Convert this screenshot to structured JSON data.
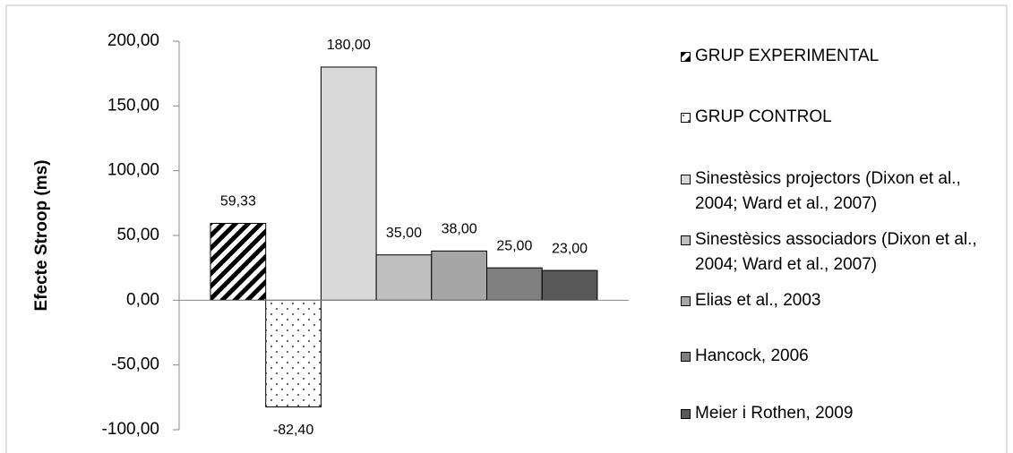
{
  "chart_data": {
    "type": "bar",
    "y_label": "Efecte Stroop (ms)",
    "categories": [
      null
    ],
    "ylim": [
      -100,
      200
    ],
    "yticks": [
      {
        "value": -100,
        "label": "-100,00"
      },
      {
        "value": -50,
        "label": "-50,00"
      },
      {
        "value": 0,
        "label": "0,00"
      },
      {
        "value": 50,
        "label": "50,00"
      },
      {
        "value": 100,
        "label": "100,00"
      },
      {
        "value": 150,
        "label": "150,00"
      },
      {
        "value": 200,
        "label": "200,00"
      }
    ],
    "grid": false,
    "legend": "right",
    "series": [
      {
        "name": "GRUP EXPERIMENTAL",
        "color": "#000000",
        "pattern": "stripes",
        "values": [
          59.33
        ],
        "value_labels": [
          "59,33"
        ]
      },
      {
        "name": "GRUP CONTROL",
        "color": "#000000",
        "pattern": "dots",
        "values": [
          -82.4
        ],
        "value_labels": [
          "-82,40"
        ]
      },
      {
        "name": "Sinestèsics projectors (Dixon et al., 2004; Ward et al., 2007)",
        "color": "#d9d9d9",
        "values": [
          180
        ],
        "value_labels": [
          "180,00"
        ]
      },
      {
        "name": "Sinestèsics associadors (Dixon et al., 2004; Ward et al., 2007)",
        "color": "#bfbfbf",
        "values": [
          35
        ],
        "value_labels": [
          "35,00"
        ]
      },
      {
        "name": "Elias et al., 2003",
        "color": "#a6a6a6",
        "values": [
          38
        ],
        "value_labels": [
          "38,00"
        ]
      },
      {
        "name": "Hancock, 2006",
        "color": "#808080",
        "values": [
          25
        ],
        "value_labels": [
          "25,00"
        ]
      },
      {
        "name": "Meier i Rothen, 2009",
        "color": "#595959",
        "values": [
          23
        ],
        "value_labels": [
          "23,00"
        ]
      }
    ]
  }
}
